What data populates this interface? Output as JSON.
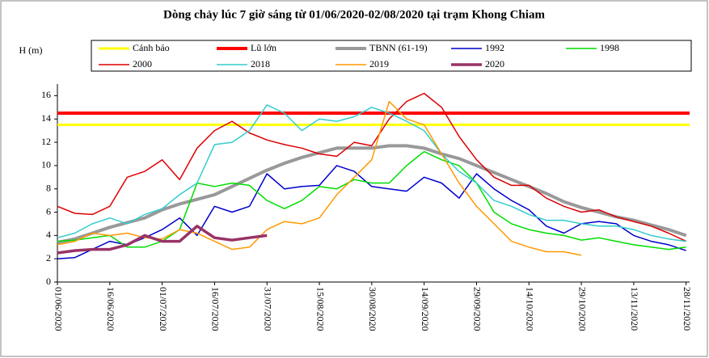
{
  "chart_data": {
    "type": "line",
    "title": "Dòng chảy lúc 7 giờ sáng từ 01/06/2020-02/08/2020 tại trạm Khong Chiam",
    "y_label": "H (m)",
    "xlim": [
      0,
      181
    ],
    "xticks": [
      {
        "value": 0,
        "label": "01/06/2020"
      },
      {
        "value": 15,
        "label": "16/06/2020"
      },
      {
        "value": 30,
        "label": "01/07/2020"
      },
      {
        "value": 45,
        "label": "16/07/2020"
      },
      {
        "value": 60,
        "label": "31/07/2020"
      },
      {
        "value": 75,
        "label": "15/08/2020"
      },
      {
        "value": 90,
        "label": "30/08/2020"
      },
      {
        "value": 105,
        "label": "14/09/2020"
      },
      {
        "value": 120,
        "label": "29/09/2020"
      },
      {
        "value": 135,
        "label": "14/10/2020"
      },
      {
        "value": 150,
        "label": "29/10/2020"
      },
      {
        "value": 165,
        "label": "13/11/2020"
      },
      {
        "value": 180,
        "label": "28/11/2020"
      }
    ],
    "ylim": [
      0,
      17
    ],
    "yticks": [
      0,
      2,
      4,
      6,
      8,
      10,
      12,
      14,
      16
    ],
    "series": [
      {
        "name": "Cảnh báo",
        "color": "#ffff00",
        "line_width": 3,
        "x": [
          0,
          181
        ],
        "values": [
          13.5,
          13.5
        ]
      },
      {
        "name": "Lũ lớn",
        "color": "#ff0000",
        "line_width": 4,
        "x": [
          0,
          181
        ],
        "values": [
          14.5,
          14.5
        ]
      },
      {
        "name": "TBNN (61-19)",
        "color": "#999999",
        "line_width": 4,
        "x": [
          0,
          5,
          10,
          15,
          20,
          25,
          30,
          35,
          40,
          45,
          50,
          55,
          60,
          65,
          70,
          75,
          80,
          85,
          90,
          95,
          100,
          105,
          110,
          115,
          120,
          125,
          130,
          135,
          140,
          145,
          150,
          155,
          160,
          165,
          170,
          175,
          180
        ],
        "values": [
          3.4,
          3.7,
          4.2,
          4.7,
          5.1,
          5.5,
          6.2,
          6.7,
          7.1,
          7.5,
          8.2,
          8.9,
          9.6,
          10.2,
          10.7,
          11.1,
          11.5,
          11.5,
          11.5,
          11.7,
          11.7,
          11.5,
          11.0,
          10.6,
          10.0,
          9.4,
          8.8,
          8.2,
          7.6,
          6.9,
          6.4,
          6.0,
          5.6,
          5.3,
          4.9,
          4.5,
          4.0
        ]
      },
      {
        "name": "1992",
        "color": "#0000cc",
        "line_width": 1.5,
        "x": [
          0,
          5,
          10,
          15,
          20,
          25,
          30,
          35,
          40,
          45,
          50,
          55,
          60,
          65,
          70,
          75,
          80,
          85,
          90,
          95,
          100,
          105,
          110,
          115,
          120,
          125,
          130,
          135,
          140,
          145,
          150,
          155,
          160,
          165,
          170,
          175,
          180
        ],
        "values": [
          2.0,
          2.1,
          2.8,
          3.5,
          3.2,
          3.8,
          4.5,
          5.5,
          4.0,
          6.5,
          6.0,
          6.5,
          9.3,
          8.0,
          8.2,
          8.3,
          10.0,
          9.5,
          8.2,
          8.0,
          7.8,
          9.0,
          8.5,
          7.2,
          9.3,
          8.0,
          7.0,
          6.2,
          4.8,
          4.2,
          5.0,
          5.2,
          5.0,
          4.0,
          3.5,
          3.2,
          2.7
        ]
      },
      {
        "name": "1998",
        "color": "#00dd00",
        "line_width": 1.5,
        "x": [
          0,
          5,
          10,
          15,
          20,
          25,
          30,
          35,
          40,
          45,
          50,
          55,
          60,
          65,
          70,
          75,
          80,
          85,
          90,
          95,
          100,
          105,
          110,
          115,
          120,
          125,
          130,
          135,
          140,
          145,
          150,
          155,
          160,
          165,
          170,
          175,
          180
        ],
        "values": [
          3.5,
          3.6,
          3.8,
          4.0,
          3.0,
          3.0,
          3.5,
          4.5,
          8.5,
          8.2,
          8.5,
          8.3,
          7.0,
          6.3,
          7.0,
          8.2,
          8.0,
          8.8,
          8.5,
          8.5,
          10.0,
          11.2,
          10.5,
          10.0,
          8.5,
          6.0,
          5.0,
          4.5,
          4.2,
          4.0,
          3.6,
          3.8,
          3.5,
          3.2,
          3.0,
          2.8,
          3.0
        ]
      },
      {
        "name": "2000",
        "color": "#dd0000",
        "line_width": 1.5,
        "x": [
          0,
          5,
          10,
          15,
          20,
          25,
          30,
          35,
          40,
          45,
          50,
          55,
          60,
          65,
          70,
          75,
          80,
          85,
          90,
          95,
          100,
          105,
          110,
          115,
          120,
          125,
          130,
          135,
          140,
          145,
          150,
          155,
          160,
          165,
          170,
          175,
          180
        ],
        "values": [
          6.5,
          5.9,
          5.8,
          6.5,
          9.0,
          9.5,
          10.5,
          8.8,
          11.5,
          13.0,
          13.8,
          12.8,
          12.2,
          11.8,
          11.5,
          11.0,
          10.8,
          12.0,
          11.7,
          14.0,
          15.5,
          16.2,
          15.0,
          12.5,
          10.5,
          9.0,
          8.3,
          8.3,
          7.2,
          6.5,
          6.0,
          6.2,
          5.6,
          5.2,
          4.8,
          4.2,
          3.5
        ]
      },
      {
        "name": "2018",
        "color": "#33cccc",
        "line_width": 1.5,
        "x": [
          0,
          5,
          10,
          15,
          20,
          25,
          30,
          35,
          40,
          45,
          50,
          55,
          60,
          65,
          70,
          75,
          80,
          85,
          90,
          95,
          100,
          105,
          110,
          115,
          120,
          125,
          130,
          135,
          140,
          145,
          150,
          155,
          160,
          165,
          170,
          175,
          180
        ],
        "values": [
          3.8,
          4.2,
          5.0,
          5.5,
          5.0,
          5.8,
          6.3,
          7.5,
          8.5,
          11.8,
          12.0,
          13.0,
          15.2,
          14.5,
          13.0,
          14.0,
          13.8,
          14.2,
          15.0,
          14.5,
          13.8,
          13.0,
          11.0,
          9.5,
          8.5,
          7.0,
          6.5,
          5.8,
          5.3,
          5.3,
          5.0,
          4.8,
          4.8,
          4.5,
          4.0,
          3.7,
          3.5
        ]
      },
      {
        "name": "2019",
        "color": "#ff9900",
        "line_width": 1.5,
        "x": [
          0,
          5,
          10,
          15,
          20,
          25,
          30,
          35,
          40,
          45,
          50,
          55,
          60,
          65,
          70,
          75,
          80,
          85,
          90,
          95,
          100,
          105,
          110,
          115,
          120,
          125,
          130,
          135,
          140,
          145,
          150
        ],
        "values": [
          3.2,
          3.5,
          4.2,
          4.0,
          4.2,
          3.8,
          3.7,
          4.5,
          4.2,
          3.5,
          2.8,
          3.0,
          4.5,
          5.2,
          5.0,
          5.5,
          7.5,
          9.0,
          10.5,
          15.5,
          14.0,
          13.5,
          11.0,
          8.5,
          6.5,
          5.0,
          3.5,
          3.0,
          2.6,
          2.6,
          2.3
        ]
      },
      {
        "name": "2020",
        "color": "#993366",
        "line_width": 3.5,
        "x": [
          0,
          5,
          10,
          15,
          20,
          25,
          30,
          35,
          40,
          45,
          50,
          55,
          60
        ],
        "values": [
          2.5,
          2.7,
          2.8,
          2.8,
          3.2,
          4.0,
          3.5,
          3.5,
          4.8,
          3.8,
          3.6,
          3.8,
          4.0
        ]
      }
    ]
  }
}
